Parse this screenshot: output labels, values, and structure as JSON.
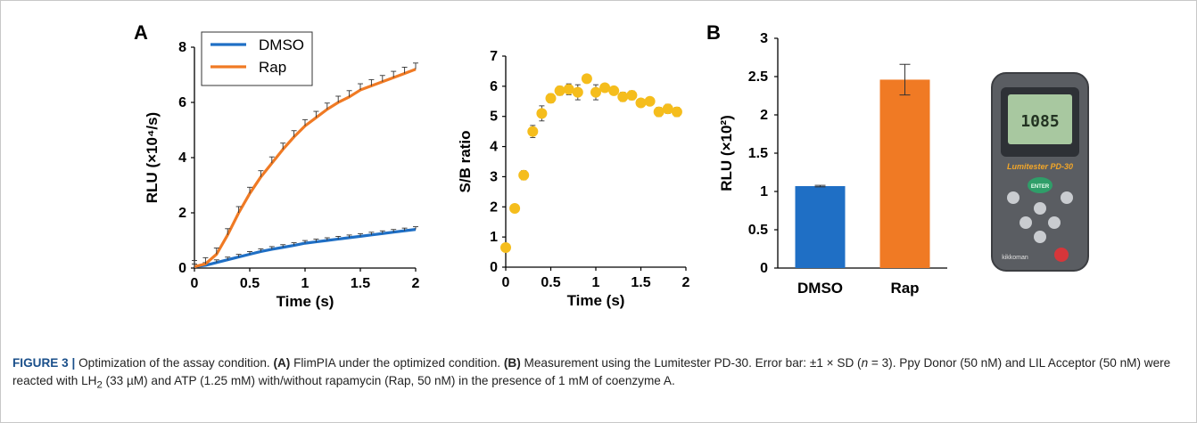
{
  "figure": {
    "panel_a_letter": "A",
    "panel_b_letter": "B"
  },
  "caption": {
    "label": "FIGURE 3 |",
    "title": "Optimization of the assay condition.",
    "a_tag": "(A)",
    "a_text": "FlimPIA under the optimized condition.",
    "b_tag": "(B)",
    "b_text": "Measurement using the Lumitester PD-30. Error bar: ±1 × SD (",
    "n_italic": "n",
    "rest": " = 3). Ppy Donor (50 nM) and LIL Acceptor (50 nM) were reacted with LH",
    "sub2": "2",
    "rest2": " (33 µM) and ATP (1.25 mM) with/without rapamycin (Rap, 50 nM) in the presence of 1 mM of coenzyme A."
  },
  "device": {
    "screen_value": "1085",
    "brand_label": "Lumitester PD-30",
    "enter_label": "ENTER",
    "maker": "kikkoman",
    "icon": "luminometer-device"
  },
  "chart_data": [
    {
      "type": "line",
      "xlabel": "Time (s)",
      "ylabel": "RLU (×10⁴/s)",
      "xlim": [
        0,
        2
      ],
      "ylim": [
        0,
        8
      ],
      "xticks": [
        "0",
        "0.5",
        "1",
        "1.5",
        "2"
      ],
      "yticks": [
        "0",
        "2",
        "4",
        "6",
        "8"
      ],
      "legend_position": "top-left",
      "series": [
        {
          "name": "DMSO",
          "color": "#1f6fc5",
          "x": [
            0,
            0.1,
            0.2,
            0.3,
            0.4,
            0.5,
            0.6,
            0.7,
            0.8,
            0.9,
            1.0,
            1.1,
            1.2,
            1.3,
            1.4,
            1.5,
            1.6,
            1.7,
            1.8,
            1.9,
            2.0
          ],
          "y": [
            0.05,
            0.1,
            0.2,
            0.3,
            0.4,
            0.5,
            0.6,
            0.68,
            0.75,
            0.82,
            0.9,
            0.95,
            1.0,
            1.05,
            1.1,
            1.15,
            1.2,
            1.25,
            1.3,
            1.35,
            1.4
          ]
        },
        {
          "name": "Rap",
          "color": "#f07a24",
          "x": [
            0,
            0.1,
            0.2,
            0.3,
            0.4,
            0.5,
            0.6,
            0.7,
            0.8,
            0.9,
            1.0,
            1.1,
            1.2,
            1.3,
            1.4,
            1.5,
            1.6,
            1.7,
            1.8,
            1.9,
            2.0
          ],
          "y": [
            0.05,
            0.15,
            0.5,
            1.2,
            2.0,
            2.7,
            3.3,
            3.8,
            4.3,
            4.75,
            5.15,
            5.45,
            5.75,
            6.0,
            6.2,
            6.45,
            6.6,
            6.75,
            6.9,
            7.05,
            7.2
          ]
        }
      ]
    },
    {
      "type": "scatter",
      "xlabel": "Time (s)",
      "ylabel": "S/B ratio",
      "xlim": [
        0,
        2
      ],
      "ylim": [
        0,
        7
      ],
      "xticks": [
        "0",
        "0.5",
        "1",
        "1.5",
        "2"
      ],
      "yticks": [
        "0",
        "1",
        "2",
        "3",
        "4",
        "5",
        "6",
        "7"
      ],
      "series": [
        {
          "name": "",
          "color": "#f5bd1c",
          "x": [
            0,
            0.1,
            0.2,
            0.3,
            0.4,
            0.5,
            0.6,
            0.7,
            0.8,
            0.9,
            1.0,
            1.1,
            1.2,
            1.3,
            1.4,
            1.5,
            1.6,
            1.7,
            1.8,
            1.9
          ],
          "y": [
            0.65,
            1.95,
            3.05,
            4.5,
            5.1,
            5.6,
            5.85,
            5.9,
            5.8,
            6.25,
            5.8,
            5.95,
            5.85,
            5.65,
            5.7,
            5.45,
            5.5,
            5.15,
            5.25,
            5.15
          ],
          "err": [
            0.1,
            0.12,
            0.15,
            0.2,
            0.25,
            0.15,
            0.15,
            0.18,
            0.25,
            0.1,
            0.25,
            0.1,
            0.12,
            0.15,
            0.15,
            0.1,
            0.1,
            0.15,
            0.15,
            0.15
          ]
        }
      ]
    },
    {
      "type": "bar",
      "ylabel": "RLU (×10²)",
      "categories": [
        "DMSO",
        "Rap"
      ],
      "values": [
        1.07,
        2.46
      ],
      "errors": [
        0.01,
        0.2
      ],
      "colors": [
        "#1f6fc5",
        "#f07a24"
      ],
      "ylim": [
        0,
        3
      ],
      "yticks": [
        "0",
        "0.5",
        "1",
        "1.5",
        "2",
        "2.5",
        "3"
      ]
    }
  ]
}
